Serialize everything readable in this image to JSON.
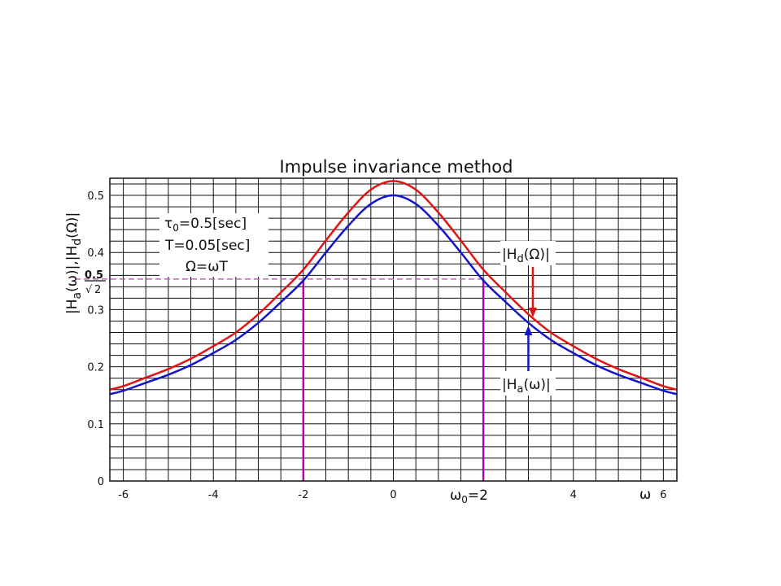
{
  "chart_data": {
    "type": "line",
    "title": "Impulse invariance method",
    "ylabel_parts": {
      "bar": "|",
      "ha": "H",
      "ha_sub": "a",
      "ha_arg": "(ω)",
      "sep": "|,|",
      "hd": "H",
      "hd_sub": "d",
      "hd_arg": "(Ω)",
      "end": "|"
    },
    "xlim": [
      -6.3,
      6.3
    ],
    "ylim": [
      0,
      0.53
    ],
    "x_ticks": [
      "-6",
      "-4",
      "-2",
      "0",
      "4",
      "6"
    ],
    "y_ticks": [
      "0",
      "0.1",
      "0.2",
      "0.3",
      "0.4",
      "0.5"
    ],
    "grid": true,
    "series": [
      {
        "color": "#1414c8",
        "x": [
          -6.3,
          -6,
          -5.5,
          -5,
          -4.5,
          -4,
          -3.5,
          -3,
          -2.5,
          -2,
          -1.5,
          -1,
          -0.5,
          0,
          0.5,
          1,
          1.5,
          2,
          2.5,
          3,
          3.5,
          4,
          4.5,
          5,
          5.5,
          6,
          6.3
        ],
        "y": [
          0.152,
          0.158,
          0.172,
          0.186,
          0.203,
          0.224,
          0.247,
          0.277,
          0.313,
          0.351,
          0.4,
          0.447,
          0.485,
          0.5,
          0.485,
          0.447,
          0.4,
          0.351,
          0.313,
          0.277,
          0.247,
          0.224,
          0.203,
          0.186,
          0.172,
          0.158,
          0.152
        ]
      },
      {
        "color": "#e01414",
        "x": [
          -6.3,
          -6,
          -5.5,
          -5,
          -4.5,
          -4,
          -3.5,
          -3,
          -2.5,
          -2,
          -1.5,
          -1,
          -0.5,
          0,
          0.5,
          1,
          1.5,
          2,
          2.5,
          3,
          3.5,
          4,
          4.5,
          5,
          5.5,
          6,
          6.3
        ],
        "y": [
          0.16,
          0.166,
          0.181,
          0.196,
          0.214,
          0.236,
          0.26,
          0.292,
          0.33,
          0.37,
          0.421,
          0.47,
          0.51,
          0.525,
          0.51,
          0.47,
          0.421,
          0.37,
          0.33,
          0.292,
          0.26,
          0.236,
          0.214,
          0.196,
          0.181,
          0.166,
          0.16
        ]
      }
    ],
    "reference": {
      "y_level": 0.3536,
      "frac_num": "0.5",
      "frac_den": "2",
      "sqrt_sign": "√",
      "verticals_x": [
        -2,
        2
      ],
      "dashed_color": "#c060c0",
      "vertical_color": "#b000b0"
    },
    "annotations": {
      "params": [
        "τ",
        "0",
        "=0.5[sec]",
        "T=0.05[sec]",
        "Ω=ωT"
      ],
      "hd_label": {
        "bar": "|",
        "main": "H",
        "sub": "d",
        "arg": "(Ω)",
        "end": "|"
      },
      "ha_label": {
        "bar": "|",
        "main": "H",
        "sub": "a",
        "arg": "(ω)",
        "end": "|"
      },
      "omega0_label": {
        "main": "ω",
        "sub": "0",
        "rest": "=2"
      },
      "omega_axis_label": "ω",
      "arrow_hd_x": 3.1,
      "arrow_ha_x": 3.0
    }
  }
}
